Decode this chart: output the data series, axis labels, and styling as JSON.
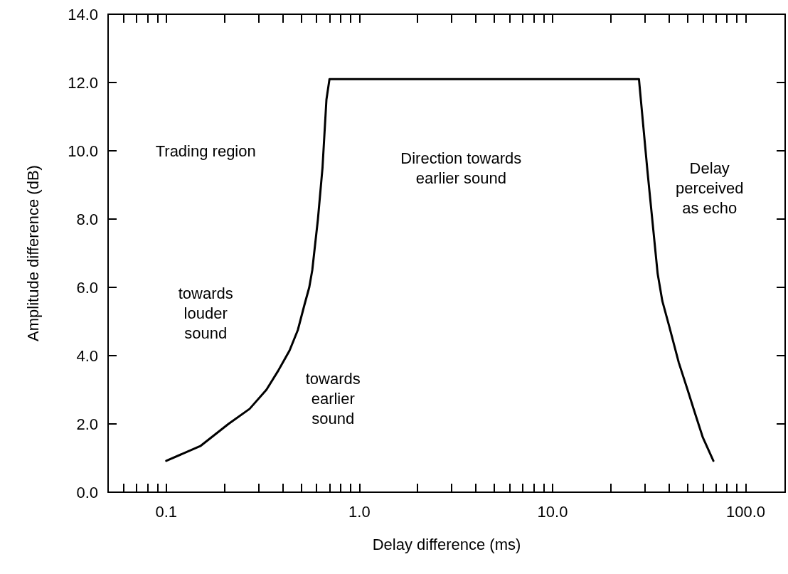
{
  "chart_data": {
    "type": "line",
    "xlabel": "Delay difference (ms)",
    "ylabel": "Amplitude difference (dB)",
    "log": "x",
    "xlim": [
      0.05,
      160
    ],
    "ylim": [
      0,
      14
    ],
    "xticks": [
      {
        "value": 0.06,
        "label": null
      },
      {
        "value": 0.07,
        "label": null
      },
      {
        "value": 0.08,
        "label": null
      },
      {
        "value": 0.09,
        "label": null
      },
      {
        "value": 0.1,
        "label": "0.1"
      },
      {
        "value": 0.2,
        "label": null
      },
      {
        "value": 0.3,
        "label": null
      },
      {
        "value": 0.4,
        "label": null
      },
      {
        "value": 0.5,
        "label": null
      },
      {
        "value": 0.6,
        "label": null
      },
      {
        "value": 0.7,
        "label": null
      },
      {
        "value": 0.8,
        "label": null
      },
      {
        "value": 0.9,
        "label": null
      },
      {
        "value": 1,
        "label": "1.0"
      },
      {
        "value": 2,
        "label": null
      },
      {
        "value": 3,
        "label": null
      },
      {
        "value": 4,
        "label": null
      },
      {
        "value": 5,
        "label": null
      },
      {
        "value": 6,
        "label": null
      },
      {
        "value": 7,
        "label": null
      },
      {
        "value": 8,
        "label": null
      },
      {
        "value": 9,
        "label": null
      },
      {
        "value": 10,
        "label": "10.0"
      },
      {
        "value": 20,
        "label": null
      },
      {
        "value": 30,
        "label": null
      },
      {
        "value": 40,
        "label": null
      },
      {
        "value": 50,
        "label": null
      },
      {
        "value": 60,
        "label": null
      },
      {
        "value": 70,
        "label": null
      },
      {
        "value": 80,
        "label": null
      },
      {
        "value": 90,
        "label": null
      },
      {
        "value": 100,
        "label": "100.0"
      }
    ],
    "yticks": [
      {
        "value": 0,
        "label": "0.0"
      },
      {
        "value": 2,
        "label": "2.0"
      },
      {
        "value": 4,
        "label": "4.0"
      },
      {
        "value": 6,
        "label": "6.0"
      },
      {
        "value": 8,
        "label": "8.0"
      },
      {
        "value": 10,
        "label": "10.0"
      },
      {
        "value": 12,
        "label": "12.0"
      },
      {
        "value": 14,
        "label": "14.0"
      }
    ],
    "grid": false,
    "marker": "none",
    "line_style": "solid",
    "x": [
      0.1,
      0.15,
      0.21,
      0.27,
      0.33,
      0.38,
      0.435,
      0.48,
      0.52,
      0.55,
      0.57,
      0.61,
      0.644,
      0.675,
      0.7,
      28,
      31,
      35,
      37,
      40,
      45,
      50,
      54,
      60,
      68
    ],
    "series": [
      {
        "color": "#000000",
        "values": [
          0.92,
          1.35,
          2.0,
          2.44,
          3.0,
          3.56,
          4.15,
          4.75,
          5.5,
          6.0,
          6.5,
          8.0,
          9.5,
          11.5,
          12.1,
          12.1,
          9.4,
          6.4,
          5.6,
          4.9,
          3.8,
          3.0,
          2.4,
          1.6,
          0.92
        ]
      }
    ],
    "annotations": [
      "Trading region",
      "towards\nlouder\nsound",
      "towards\nearlier\nsound",
      "Direction towards\nearlier sound",
      "Delay\nperceived\nas echo"
    ]
  }
}
